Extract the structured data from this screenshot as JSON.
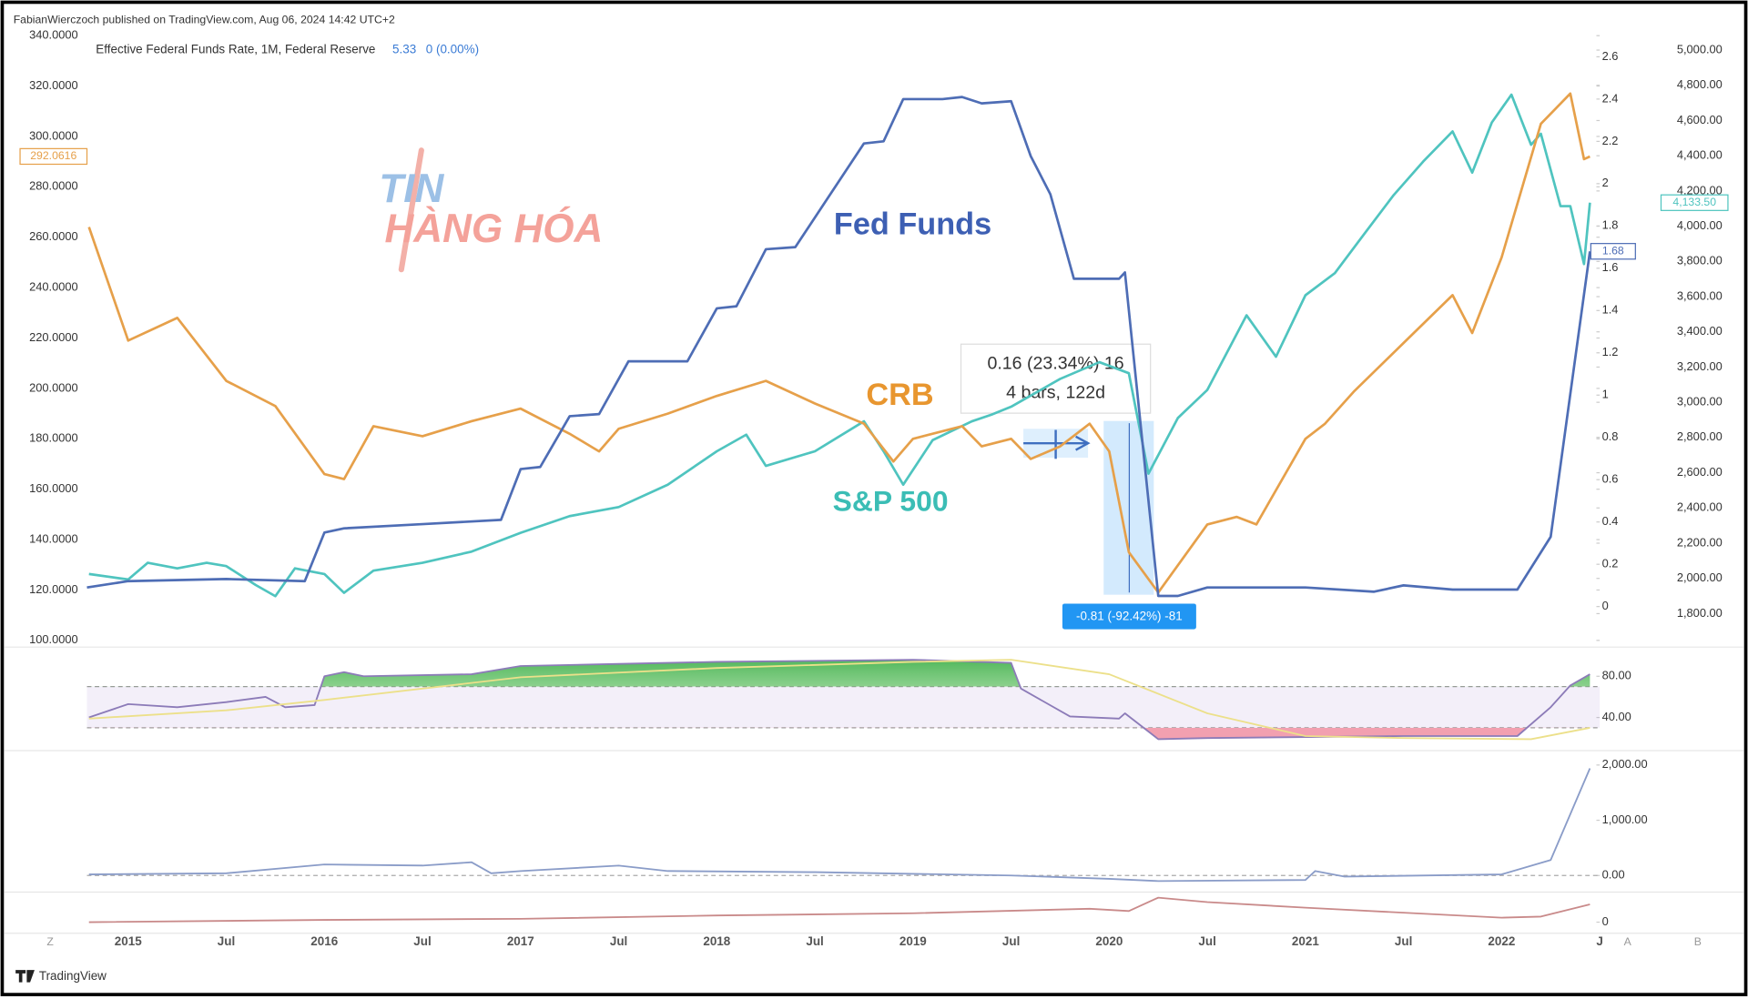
{
  "header": {
    "publisher": "FabianWierczoch published on TradingView.com, Aug 06, 2024 14:42 UTC+2",
    "footer": "TradingView",
    "controls": [
      "Z",
      "A",
      "B"
    ],
    "watermark": [
      "TIN",
      "HÀNG HÓA"
    ]
  },
  "chart_data": [
    {
      "type": "line",
      "title": "Effective Federal Funds Rate, 1M, Federal Reserve",
      "title_value": "5.33",
      "title_change": "0 (0.00%)",
      "labels": {
        "fed": "Fed Funds",
        "crb": "CRB",
        "sp": "S&P 500"
      },
      "measure": {
        "top": "0.16 (23.34%) 16",
        "bars": "4 bars, 122d",
        "bottom": "-0.81 (-92.42%) -81"
      },
      "xlim": [
        2014.79,
        2022.5
      ],
      "yaxis": "left",
      "ylim": [
        100,
        340
      ],
      "yticks": [
        {
          "value": 100,
          "label": "100.0000"
        },
        {
          "value": 120,
          "label": "120.0000"
        },
        {
          "value": 140,
          "label": "140.0000"
        },
        {
          "value": 160,
          "label": "160.0000"
        },
        {
          "value": 180,
          "label": "180.0000"
        },
        {
          "value": 200,
          "label": "200.0000"
        },
        {
          "value": 220,
          "label": "220.0000"
        },
        {
          "value": 240,
          "label": "240.0000"
        },
        {
          "value": 260,
          "label": "260.0000"
        },
        {
          "value": 280,
          "label": "280.0000"
        },
        {
          "value": 300,
          "label": "300.0000"
        },
        {
          "value": 320,
          "label": "320.0000"
        },
        {
          "value": 340,
          "label": "340.0000"
        }
      ],
      "y2lim": [
        -0.16,
        2.7
      ],
      "y2ticks": [
        0,
        0.2,
        0.4,
        0.6,
        0.8,
        1,
        1.2,
        1.4,
        1.6,
        1.8,
        2,
        2.2,
        2.4,
        2.6
      ],
      "y3lim": [
        1648,
        5082
      ],
      "y3ticks": [
        {
          "value": 1800,
          "label": "1,800.00"
        },
        {
          "value": 2000,
          "label": "2,000.00"
        },
        {
          "value": 2200,
          "label": "2,200.00"
        },
        {
          "value": 2400,
          "label": "2,400.00"
        },
        {
          "value": 2600,
          "label": "2,600.00"
        },
        {
          "value": 2800,
          "label": "2,800.00"
        },
        {
          "value": 3000,
          "label": "3,000.00"
        },
        {
          "value": 3200,
          "label": "3,200.00"
        },
        {
          "value": 3400,
          "label": "3,400.00"
        },
        {
          "value": 3600,
          "label": "3,600.00"
        },
        {
          "value": 3800,
          "label": "3,800.00"
        },
        {
          "value": 4000,
          "label": "4,000.00"
        },
        {
          "value": 4200,
          "label": "4,200.00"
        },
        {
          "value": 4400,
          "label": "4,400.00"
        },
        {
          "value": 4600,
          "label": "4,600.00"
        },
        {
          "value": 4800,
          "label": "4,800.00"
        },
        {
          "value": 5000,
          "label": "5,000.00"
        }
      ],
      "series": [
        {
          "color": "#4fc4bf",
          "axis": "y3",
          "x": [
            2014.8,
            2015.0,
            2015.1,
            2015.25,
            2015.4,
            2015.5,
            2015.65,
            2015.75,
            2015.85,
            2016.0,
            2016.1,
            2016.25,
            2016.5,
            2016.75,
            2017.0,
            2017.25,
            2017.5,
            2017.75,
            2018.0,
            2018.15,
            2018.25,
            2018.5,
            2018.75,
            2018.85,
            2018.95,
            2019.1,
            2019.3,
            2019.4,
            2019.5,
            2019.75,
            2019.95,
            2020.1,
            2020.2,
            2020.35,
            2020.5,
            2020.7,
            2020.85,
            2021.0,
            2021.15,
            2021.3,
            2021.45,
            2021.6,
            2021.75,
            2021.85,
            2021.95,
            2022.05,
            2022.15,
            2022.2,
            2022.3,
            2022.35,
            2022.42,
            2022.45
          ],
          "values": [
            2025,
            1994,
            2089,
            2057,
            2089,
            2070,
            1962,
            1899,
            2057,
            2025,
            1918,
            2044,
            2089,
            2152,
            2259,
            2354,
            2405,
            2532,
            2722,
            2816,
            2639,
            2722,
            2892,
            2722,
            2532,
            2785,
            2892,
            2930,
            2975,
            3133,
            3228,
            3165,
            2595,
            2911,
            3070,
            3494,
            3259,
            3608,
            3734,
            3956,
            4177,
            4367,
            4538,
            4304,
            4589,
            4747,
            4462,
            4525,
            4114,
            4114,
            3785,
            4133.5
          ],
          "value_labels": [
            null,
            null,
            null,
            null,
            null,
            null,
            null,
            null,
            null,
            null,
            null,
            null,
            null,
            null,
            null,
            null,
            null,
            null,
            null,
            null,
            null,
            null,
            null,
            null,
            null,
            null,
            null,
            null,
            null,
            null,
            null,
            null,
            null,
            null,
            null,
            null,
            null,
            null,
            null,
            null,
            null,
            null,
            null,
            null,
            null,
            null,
            null,
            null,
            null,
            null,
            null,
            "4,133.50"
          ]
        },
        {
          "color": "#e6a04a",
          "axis": "y",
          "x": [
            2014.8,
            2015.0,
            2015.25,
            2015.5,
            2015.75,
            2016.0,
            2016.1,
            2016.25,
            2016.5,
            2016.75,
            2017.0,
            2017.25,
            2017.4,
            2017.5,
            2017.75,
            2018.0,
            2018.25,
            2018.5,
            2018.75,
            2018.9,
            2019.0,
            2019.25,
            2019.35,
            2019.5,
            2019.6,
            2019.75,
            2019.9,
            2020.0,
            2020.1,
            2020.25,
            2020.5,
            2020.65,
            2020.75,
            2021.0,
            2021.1,
            2021.25,
            2021.5,
            2021.75,
            2021.85,
            2022.0,
            2022.2,
            2022.35,
            2022.42,
            2022.45
          ],
          "values": [
            264,
            219,
            228,
            203,
            193,
            166,
            164,
            185,
            181,
            187,
            192,
            182,
            175,
            184,
            190,
            197,
            203,
            194,
            186,
            171,
            180,
            185,
            177,
            180,
            172,
            177,
            186,
            175,
            135,
            119,
            146,
            149,
            146,
            180,
            186,
            199,
            218,
            237,
            222,
            252,
            305,
            317,
            291,
            292.0616
          ],
          "value_labels": [
            null,
            null,
            null,
            null,
            null,
            null,
            null,
            null,
            null,
            null,
            null,
            null,
            null,
            null,
            null,
            null,
            null,
            null,
            null,
            null,
            null,
            null,
            null,
            null,
            null,
            null,
            null,
            null,
            null,
            null,
            null,
            null,
            null,
            null,
            null,
            null,
            null,
            null,
            null,
            null,
            null,
            null,
            null,
            "292.0616"
          ]
        },
        {
          "color": "#4e6db5",
          "axis": "y2",
          "x": [
            2014.79,
            2015.0,
            2015.5,
            2015.9,
            2016.0,
            2016.1,
            2016.5,
            2016.9,
            2017.0,
            2017.1,
            2017.25,
            2017.4,
            2017.55,
            2017.85,
            2018.0,
            2018.1,
            2018.25,
            2018.4,
            2018.55,
            2018.75,
            2018.85,
            2018.95,
            2019.15,
            2019.25,
            2019.35,
            2019.5,
            2019.6,
            2019.7,
            2019.82,
            2020.05,
            2020.08,
            2020.25,
            2020.35,
            2020.5,
            2021.0,
            2021.35,
            2021.5,
            2021.75,
            2022.08,
            2022.25,
            2022.45
          ],
          "values": [
            0.09,
            0.12,
            0.13,
            0.12,
            0.35,
            0.37,
            0.39,
            0.41,
            0.65,
            0.66,
            0.9,
            0.91,
            1.16,
            1.16,
            1.41,
            1.42,
            1.69,
            1.7,
            1.91,
            2.19,
            2.2,
            2.4,
            2.4,
            2.41,
            2.38,
            2.39,
            2.13,
            1.95,
            1.55,
            1.55,
            1.58,
            0.05,
            0.05,
            0.09,
            0.09,
            0.07,
            0.1,
            0.08,
            0.08,
            0.33,
            1.68
          ],
          "value_labels": [
            null,
            null,
            null,
            null,
            null,
            null,
            null,
            null,
            null,
            null,
            null,
            null,
            null,
            null,
            null,
            null,
            null,
            null,
            null,
            null,
            null,
            null,
            null,
            null,
            null,
            null,
            null,
            null,
            null,
            null,
            null,
            null,
            null,
            null,
            null,
            null,
            null,
            null,
            null,
            null,
            "1.68"
          ]
        }
      ]
    },
    {
      "type": "line",
      "xlim": [
        2014.79,
        2022.5
      ],
      "yaxis": "right",
      "ylim": [
        10,
        104
      ],
      "yticks": [
        {
          "value": 40,
          "label": "40.00"
        },
        {
          "value": 80,
          "label": "80.00"
        }
      ],
      "bands": [
        70,
        30
      ],
      "series": [
        {
          "color": "#8c7bb8",
          "x": [
            2014.8,
            2015.0,
            2015.25,
            2015.5,
            2015.7,
            2015.8,
            2015.95,
            2016.0,
            2016.1,
            2016.2,
            2016.75,
            2017.0,
            2017.5,
            2018.0,
            2019.0,
            2019.5,
            2019.55,
            2019.8,
            2020.05,
            2020.08,
            2020.25,
            2020.5,
            2021.5,
            2022.08,
            2022.25,
            2022.35,
            2022.45
          ],
          "values": [
            40,
            53,
            50,
            55,
            60,
            50,
            52,
            80,
            84,
            80,
            82,
            90,
            92,
            94,
            96,
            93,
            68,
            41,
            39,
            44,
            19,
            20,
            22,
            22,
            50,
            71,
            82
          ]
        },
        {
          "color": "#ece08a",
          "x": [
            2014.8,
            2015.5,
            2016.0,
            2016.5,
            2017.0,
            2018.0,
            2019.0,
            2019.5,
            2020.0,
            2020.5,
            2021.0,
            2021.5,
            2022.15,
            2022.45
          ],
          "values": [
            39,
            47,
            57,
            68,
            79,
            88,
            94,
            96,
            82,
            44,
            22,
            20,
            19,
            30
          ]
        }
      ]
    },
    {
      "type": "line",
      "xlim": [
        2014.79,
        2022.5
      ],
      "yaxis": "right",
      "ylim": [
        -280,
        2220
      ],
      "zero_line": true,
      "yticks": [
        {
          "value": 0,
          "label": "0.00"
        },
        {
          "value": 1000,
          "label": "1,000.00"
        },
        {
          "value": 2000,
          "label": "2,000.00"
        }
      ],
      "series": [
        {
          "color": "#8a9cc8",
          "x": [
            2014.8,
            2015.5,
            2016.0,
            2016.5,
            2016.75,
            2016.85,
            2017.0,
            2017.5,
            2017.75,
            2018.5,
            2019.5,
            2020.0,
            2020.25,
            2021.0,
            2021.05,
            2021.2,
            2022.0,
            2022.25,
            2022.45
          ],
          "values": [
            20,
            40,
            200,
            180,
            240,
            40,
            80,
            180,
            80,
            60,
            0,
            -60,
            -100,
            -80,
            80,
            -20,
            20,
            280,
            1940
          ]
        }
      ]
    },
    {
      "type": "line",
      "xlim": [
        2014.79,
        2022.5
      ],
      "yaxis": "right",
      "ylim": [
        -0.4,
        1
      ],
      "yticks": [
        0
      ],
      "xticks": [
        2015,
        {
          "value": 2015.5,
          "label": "Jul"
        },
        2016,
        {
          "value": 2016.5,
          "label": "Jul"
        },
        2017,
        {
          "value": 2017.5,
          "label": "Jul"
        },
        2018,
        {
          "value": 2018.5,
          "label": "Jul"
        },
        2019,
        {
          "value": 2019.5,
          "label": "Jul"
        },
        2020,
        {
          "value": 2020.5,
          "label": "Jul"
        },
        2021,
        {
          "value": 2021.5,
          "label": "Jul"
        },
        2022,
        {
          "value": 2022.5,
          "label": "J"
        }
      ],
      "series": [
        {
          "color": "#c98a8a",
          "x": [
            2014.8,
            2016.0,
            2017.0,
            2018.0,
            2019.0,
            2019.9,
            2020.1,
            2020.25,
            2020.5,
            2021.0,
            2022.0,
            2022.2,
            2022.45
          ],
          "values": [
            0,
            0.08,
            0.12,
            0.24,
            0.32,
            0.48,
            0.4,
            0.88,
            0.72,
            0.52,
            0.16,
            0.2,
            0.64
          ]
        }
      ]
    }
  ]
}
